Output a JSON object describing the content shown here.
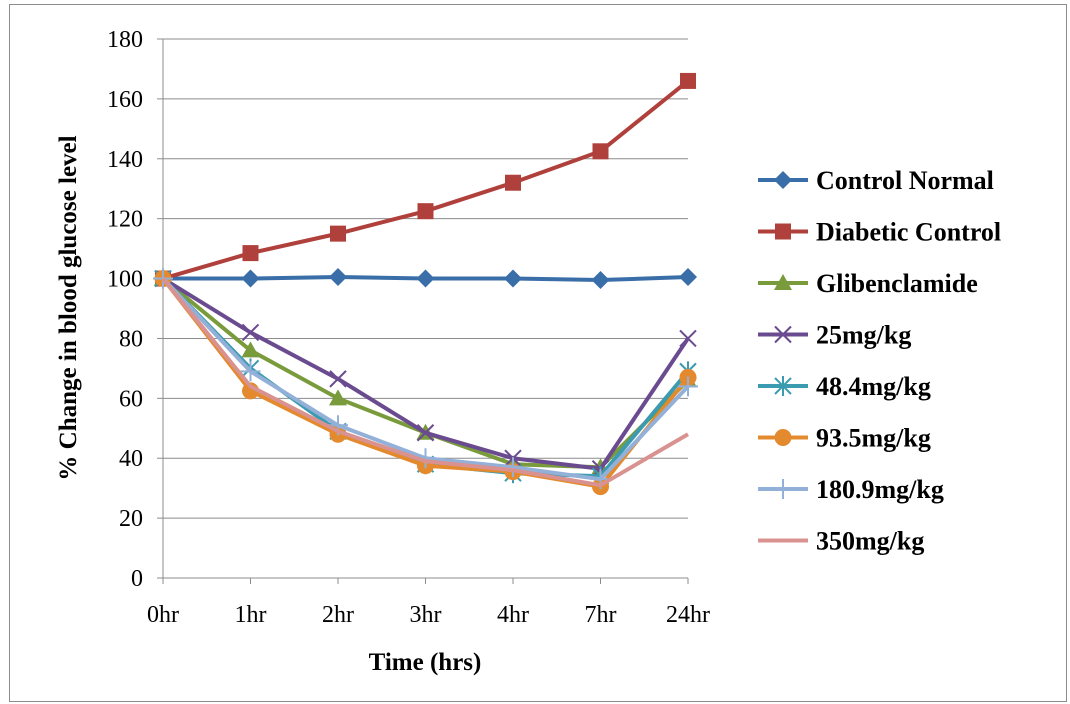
{
  "chart_data": {
    "type": "line",
    "title": "",
    "xlabel": "Time (hrs)",
    "ylabel": "% Change in blood glucose level",
    "categories": [
      "0hr",
      "1hr",
      "2hr",
      "3hr",
      "4hr",
      "7hr",
      "24hr"
    ],
    "ylim": [
      0,
      180
    ],
    "yticks": [
      0,
      20,
      40,
      60,
      80,
      100,
      120,
      140,
      160,
      180
    ],
    "grid": "horizontal",
    "legend_position": "right",
    "series": [
      {
        "name": "Control Normal",
        "color": "#3a6ea8",
        "marker": "diamond",
        "values": [
          100,
          100,
          100.5,
          100,
          100,
          99.5,
          100.5
        ]
      },
      {
        "name": "Diabetic Control",
        "color": "#b0403b",
        "marker": "square",
        "values": [
          100,
          108.5,
          115,
          122.5,
          132,
          142.5,
          166
        ]
      },
      {
        "name": "Glibenclamide",
        "color": "#7a9b3c",
        "marker": "triangle",
        "values": [
          100,
          76,
          60,
          48.5,
          38,
          37,
          66
        ]
      },
      {
        "name": "25mg/kg",
        "color": "#6a4b8f",
        "marker": "x",
        "values": [
          100,
          82,
          66.5,
          48.5,
          40,
          36.5,
          80
        ]
      },
      {
        "name": "48.4mg/kg",
        "color": "#3b9bb0",
        "marker": "star",
        "values": [
          100,
          70,
          49,
          38,
          35,
          34,
          69
        ]
      },
      {
        "name": "93.5mg/kg",
        "color": "#e48a2e",
        "marker": "circle",
        "values": [
          100,
          62.5,
          48,
          37.5,
          35.5,
          30.5,
          67
        ]
      },
      {
        "name": "180.9mg/kg",
        "color": "#93b0d8",
        "marker": "plus",
        "values": [
          100,
          69,
          51,
          40,
          37,
          33,
          64
        ]
      },
      {
        "name": "350mg/kg",
        "color": "#d9928f",
        "marker": "none",
        "values": [
          100,
          64,
          49,
          39,
          36,
          31,
          48
        ]
      }
    ]
  }
}
